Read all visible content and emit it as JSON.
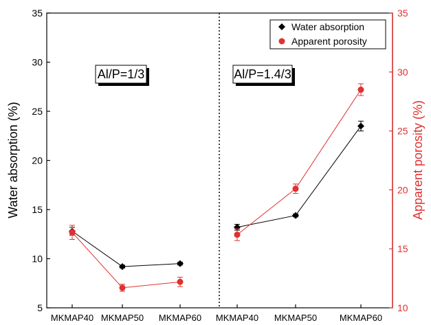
{
  "chart_data": {
    "type": "line",
    "categories": [
      "MKMAP40",
      "MKMAP50",
      "MKMAP60",
      "MKMAP40",
      "MKMAP50",
      "MKMAP60"
    ],
    "groups": [
      {
        "label": "Al/P=1/3"
      },
      {
        "label": "Al/P=1.4/3"
      }
    ],
    "series": [
      {
        "name": "Water absorption",
        "axis": "left",
        "color": "#000000",
        "marker": "diamond",
        "values": [
          12.8,
          9.2,
          9.5,
          13.2,
          14.4,
          23.5
        ],
        "errors": [
          0.4,
          0.15,
          0.15,
          0.3,
          0.15,
          0.5
        ]
      },
      {
        "name": "Apparent porosity",
        "axis": "right",
        "color": "#e03030",
        "marker": "circle",
        "values": [
          16.4,
          11.7,
          12.2,
          16.2,
          20.1,
          28.5
        ],
        "errors": [
          0.6,
          0.3,
          0.4,
          0.5,
          0.4,
          0.5
        ]
      }
    ],
    "y_left": {
      "label": "Water absorption (%)",
      "lim": [
        5,
        35
      ],
      "ticks": [
        "5",
        "10",
        "15",
        "20",
        "25",
        "30",
        "35"
      ],
      "tick_values": [
        5,
        10,
        15,
        20,
        25,
        30,
        35
      ]
    },
    "y_right": {
      "label": "Apparent porosity (%)",
      "lim": [
        10,
        35
      ],
      "ticks": [
        "10",
        "15",
        "20",
        "25",
        "30",
        "35"
      ],
      "tick_values": [
        10,
        15,
        20,
        25,
        30,
        35
      ],
      "color": "#e03030"
    },
    "legend": {
      "position": "top-right"
    },
    "grid": false
  }
}
